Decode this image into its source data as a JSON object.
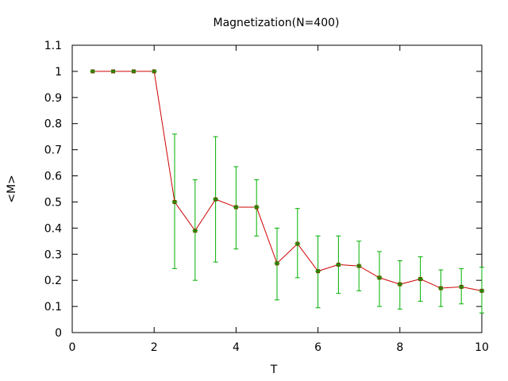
{
  "chart_data": {
    "type": "line",
    "title": "Magnetization(N=400)",
    "xlabel": "T",
    "ylabel": "<M>",
    "xlim": [
      0,
      10
    ],
    "ylim": [
      0,
      1.1
    ],
    "x_ticks": [
      "0",
      "2",
      "4",
      "6",
      "8",
      "10"
    ],
    "y_ticks": [
      "0",
      "0.1",
      "0.2",
      "0.3",
      "0.4",
      "0.5",
      "0.6",
      "0.7",
      "0.8",
      "0.9",
      "1",
      "1.1"
    ],
    "grid": false,
    "legend": "none",
    "series": [
      {
        "x": [
          0.5,
          1.0,
          1.5,
          2.0,
          2.5,
          3.0,
          3.5,
          4.0,
          4.5,
          5.0,
          5.5,
          6.0,
          6.5,
          7.0,
          7.5,
          8.0,
          8.5,
          9.0,
          9.5,
          10.0
        ],
        "y": [
          1.0,
          1.0,
          1.0,
          1.0,
          0.5,
          0.39,
          0.51,
          0.48,
          0.48,
          0.265,
          0.34,
          0.235,
          0.26,
          0.255,
          0.21,
          0.185,
          0.205,
          0.17,
          0.175,
          0.16
        ],
        "error_low": [
          1.0,
          1.0,
          1.0,
          1.0,
          0.245,
          0.2,
          0.27,
          0.32,
          0.37,
          0.125,
          0.21,
          0.095,
          0.15,
          0.16,
          0.1,
          0.09,
          0.12,
          0.1,
          0.11,
          0.075
        ],
        "error_high": [
          1.0,
          1.0,
          1.0,
          1.0,
          0.76,
          0.585,
          0.75,
          0.635,
          0.585,
          0.4,
          0.475,
          0.37,
          0.37,
          0.35,
          0.31,
          0.275,
          0.29,
          0.24,
          0.245,
          0.25
        ],
        "line_color": "#cc0000",
        "errorbar_color": "#00b000",
        "marker_color": "#5a5a00"
      }
    ]
  }
}
